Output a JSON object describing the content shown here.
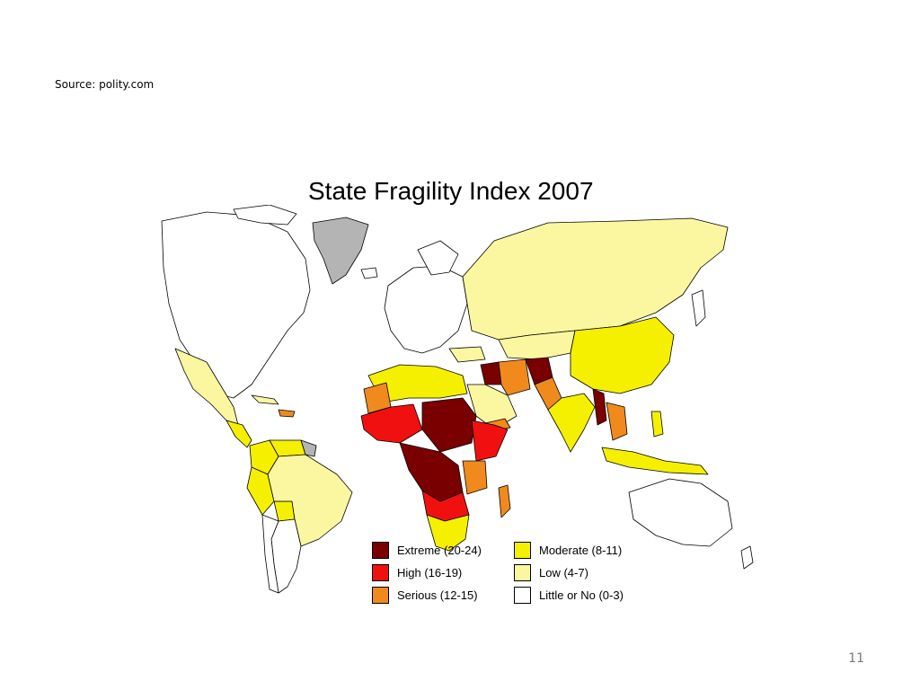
{
  "source": "Source: polity.com",
  "page_number": "11",
  "map": {
    "title": "State Fragility Index 2007",
    "legend": [
      {
        "label": "Extreme (20-24)",
        "color": "#7a0000"
      },
      {
        "label": "High (16-19)",
        "color": "#f01010"
      },
      {
        "label": "Serious (12-15)",
        "color": "#f08a1c"
      },
      {
        "label": "Moderate (8-11)",
        "color": "#f5f000"
      },
      {
        "label": "Low (4-7)",
        "color": "#fbf7a0"
      },
      {
        "label": "Little or No (0-3)",
        "color": "#ffffff"
      }
    ],
    "no_data_color": "#b4b4b4"
  }
}
